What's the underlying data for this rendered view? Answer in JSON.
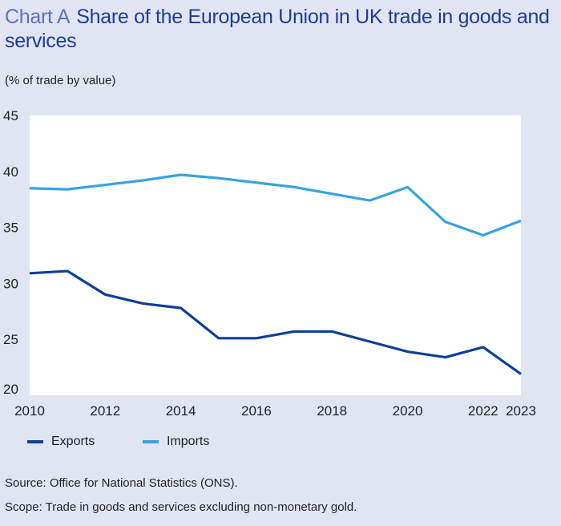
{
  "title": {
    "label": "Chart A",
    "text": "Share of the European Union in UK trade in goods and services"
  },
  "subtitle": "(% of trade by value)",
  "source": "Source: Office for National Statistics (ONS).",
  "scope": "Scope: Trade in goods and services excluding non-monetary gold.",
  "chart_data": {
    "type": "line",
    "x": [
      2010,
      2011,
      2012,
      2013,
      2014,
      2015,
      2016,
      2017,
      2018,
      2019,
      2020,
      2021,
      2022,
      2023
    ],
    "xticks": [
      "2010",
      "2012",
      "2014",
      "2016",
      "2018",
      "2020",
      "2022",
      "2023"
    ],
    "yticks": [
      "20",
      "25",
      "30",
      "35",
      "40",
      "45"
    ],
    "ylim": [
      20,
      45
    ],
    "ylabel": "(% of trade by value)",
    "grid": false,
    "legend": "bottom-left",
    "series": [
      {
        "name": "Exports",
        "color": "#0d3f99",
        "values": [
          30.9,
          31.1,
          29.0,
          28.2,
          27.8,
          25.1,
          25.1,
          25.7,
          25.7,
          24.8,
          23.9,
          23.4,
          24.3,
          21.9
        ]
      },
      {
        "name": "Imports",
        "color": "#35a4e0",
        "values": [
          38.5,
          38.4,
          38.8,
          39.2,
          39.7,
          39.4,
          39.0,
          38.6,
          38.0,
          37.4,
          38.6,
          35.5,
          34.3,
          35.6
        ]
      }
    ]
  }
}
